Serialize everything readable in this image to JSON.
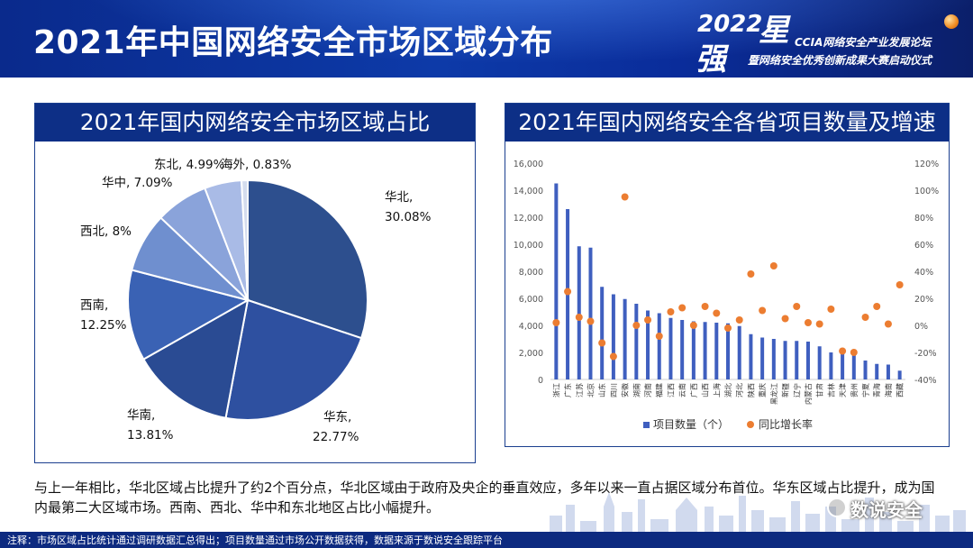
{
  "header": {
    "title": "2021年中国网络安全市场区域分布",
    "logo": {
      "year": "2022",
      "star": "星",
      "qiang": "强",
      "line1": "CCIA网络安全产业发展论坛",
      "line2": "暨网络安全优秀创新成果大赛启动仪式"
    }
  },
  "left_panel": {
    "title": "2021年国内网络安全市场区域占比"
  },
  "right_panel": {
    "title": "2021年国内网络安全各省项目数量及增速"
  },
  "chart_data": [
    {
      "type": "pie",
      "title": "2021年国内网络安全市场区域占比",
      "start_angle_deg": 0,
      "direction": "clockwise",
      "colors": [
        "#2d4f8e",
        "#2e50a0",
        "#2a4b93",
        "#3a62b4",
        "#6f8fcf",
        "#8aa3da",
        "#a9bbe6",
        "#d4dcee"
      ],
      "slices": [
        {
          "label": "华北",
          "value": 30.08,
          "label_text": "30.08%"
        },
        {
          "label": "华东",
          "value": 22.77,
          "label_text": "22.77%"
        },
        {
          "label": "华南",
          "value": 13.81,
          "label_text": "13.81%"
        },
        {
          "label": "西南",
          "value": 12.25,
          "label_text": "12.25%"
        },
        {
          "label": "西北",
          "value": 8,
          "label_text": "8%"
        },
        {
          "label": "华中",
          "value": 7.09,
          "label_text": "7.09%"
        },
        {
          "label": "东北",
          "value": 4.99,
          "label_text": "4.99%"
        },
        {
          "label": "海外",
          "value": 0.83,
          "label_text": "0.83%"
        }
      ]
    },
    {
      "type": "bar+scatter",
      "title": "2021年国内网络安全各省项目数量及增速",
      "categories": [
        "浙江",
        "广东",
        "江苏",
        "北京",
        "山东",
        "四川",
        "安徽",
        "湖南",
        "河南",
        "福建",
        "江西",
        "云南",
        "广西",
        "山西",
        "上海",
        "湖北",
        "河北",
        "陕西",
        "重庆",
        "黑龙江",
        "新疆",
        "辽宁",
        "内蒙古",
        "甘肃",
        "吉林",
        "天津",
        "贵州",
        "宁夏",
        "青海",
        "海南",
        "西藏"
      ],
      "series": [
        {
          "name": "项目数量（个）",
          "axis": "left",
          "color": "#3f5fbf",
          "values": [
            14500,
            12600,
            9850,
            9750,
            6850,
            6300,
            5950,
            5600,
            5100,
            4900,
            4550,
            4400,
            4300,
            4250,
            4200,
            4150,
            3950,
            3350,
            3100,
            3000,
            2850,
            2850,
            2800,
            2450,
            2000,
            2000,
            1950,
            1400,
            1150,
            1100,
            650
          ]
        },
        {
          "name": "同比增长率",
          "axis": "right",
          "color": "#ec7d31",
          "values": [
            2,
            25,
            6,
            3,
            -13,
            -23,
            95,
            0,
            4,
            -8,
            10,
            13,
            0,
            14,
            9,
            -2,
            4,
            38,
            11,
            44,
            5,
            14,
            2,
            1,
            12,
            -19,
            -20,
            6,
            14,
            1,
            30
          ]
        }
      ],
      "y_left": {
        "min": 0,
        "max": 16000,
        "step": 2000,
        "ticks": [
          "0",
          "2,000",
          "4,000",
          "6,000",
          "8,000",
          "10,000",
          "12,000",
          "14,000",
          "16,000"
        ]
      },
      "y_right": {
        "min": -40,
        "max": 120,
        "step": 20,
        "ticks": [
          "-40%",
          "-20%",
          "0%",
          "20%",
          "40%",
          "60%",
          "80%",
          "100%",
          "120%"
        ]
      },
      "legend_position": "bottom",
      "legend": [
        "项目数量（个）",
        "同比增长率"
      ],
      "grid": false
    }
  ],
  "bottom_text": "与上一年相比，华北区域占比提升了约2个百分点，华北区域由于政府及央企的垂直效应，多年以来一直占据区域分布首位。华东区域占比提升，成为国内最第二大区域市场。西南、西北、华中和东北地区占比小幅提升。",
  "watermark": {
    "text": "数说安全"
  },
  "footer": {
    "note": "注释：市场区域占比统计通过调研数据汇总得出；项目数量通过市场公开数据获得，数据来源于数说安全跟踪平台"
  }
}
